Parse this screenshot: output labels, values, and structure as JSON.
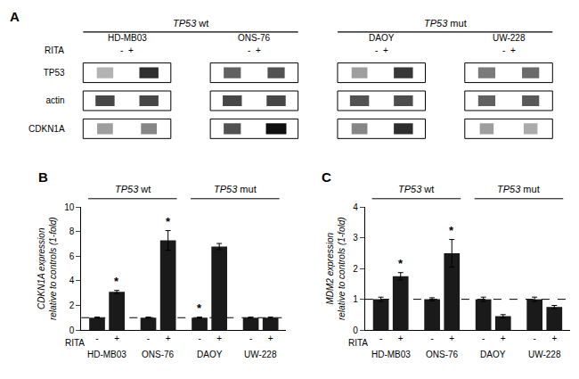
{
  "chart_data": [
    {
      "type": "blot",
      "title": "A",
      "row_labels": [
        "TP53",
        "actin",
        "CDKN1A"
      ],
      "column_labels": [
        "HD-MB03",
        "ONS-76",
        "DAOY",
        "UW-228"
      ],
      "lane_labels": [
        "-  +",
        "-  +",
        "-  +",
        "-  +"
      ],
      "lane_title": "RITA",
      "brackets": [
        {
          "text": "TP53 wt",
          "columns": [
            0,
            1
          ]
        },
        {
          "text": "TP53 mut",
          "columns": [
            2,
            3
          ]
        }
      ],
      "band_intensity": [
        [
          0.3,
          0.82,
          0.62,
          0.68,
          0.38,
          0.78,
          0.52,
          0.58
        ],
        [
          0.72,
          0.72,
          0.72,
          0.72,
          0.68,
          0.7,
          0.62,
          0.65
        ],
        [
          0.38,
          0.48,
          0.68,
          0.94,
          0.48,
          0.82,
          0.38,
          0.33
        ]
      ],
      "band_width": [
        [
          0.5,
          0.58,
          0.52,
          0.52,
          0.48,
          0.58,
          0.52,
          0.52
        ],
        [
          0.58,
          0.58,
          0.58,
          0.58,
          0.58,
          0.58,
          0.52,
          0.52
        ],
        [
          0.48,
          0.48,
          0.52,
          0.62,
          0.48,
          0.58,
          0.42,
          0.42
        ]
      ]
    },
    {
      "type": "bar",
      "title": "B",
      "categories": [
        "-",
        "+",
        "-",
        "+",
        "-",
        "+",
        "-",
        "+"
      ],
      "groups": [
        "HD-MB03",
        "HD-MB03",
        "ONS-76",
        "ONS-76",
        "DAOY",
        "DAOY",
        "UW-228",
        "UW-228"
      ],
      "category_title": "RITA",
      "values": [
        1.0,
        3.1,
        1.0,
        7.3,
        1.0,
        6.8,
        1.0,
        1.0
      ],
      "errors": [
        0.05,
        0.12,
        0.05,
        0.8,
        0.05,
        0.25,
        0.05,
        0.05
      ],
      "color": "#1a1a1a",
      "y_label": "CDKN1A expression\nrelative to controls (1-fold)",
      "ylim": [
        0,
        10
      ],
      "yticks": [
        0,
        2,
        4,
        6,
        8,
        10
      ],
      "grid": false,
      "reference_line": 1.0,
      "annotations": [
        {
          "text": "*",
          "index": 1
        },
        {
          "text": "*",
          "index": 3
        },
        {
          "text": "*",
          "index": 4
        }
      ],
      "brackets": [
        {
          "text": "TP53 wt",
          "from": 0,
          "to": 3
        },
        {
          "text": "TP53 mut",
          "from": 4,
          "to": 7
        }
      ]
    },
    {
      "type": "bar",
      "title": "C",
      "categories": [
        "-",
        "+",
        "-",
        "+",
        "-",
        "+",
        "-",
        "+"
      ],
      "groups": [
        "HD-MB03",
        "HD-MB03",
        "ONS-76",
        "ONS-76",
        "DAOY",
        "DAOY",
        "UW-228",
        "UW-228"
      ],
      "category_title": "RITA",
      "values": [
        1.0,
        1.75,
        1.0,
        2.5,
        1.0,
        0.45,
        1.0,
        0.75
      ],
      "errors": [
        0.07,
        0.12,
        0.05,
        0.45,
        0.07,
        0.05,
        0.07,
        0.05
      ],
      "color": "#1a1a1a",
      "y_label": "MDM2 expression\nrelative to controls (1-fold)",
      "ylim": [
        0,
        4
      ],
      "yticks": [
        0,
        1,
        2,
        3,
        4
      ],
      "grid": false,
      "reference_line": 1.0,
      "annotations": [
        {
          "text": "*",
          "index": 1
        },
        {
          "text": "*",
          "index": 3
        }
      ],
      "brackets": [
        {
          "text": "TP53 wt",
          "from": 0,
          "to": 3
        },
        {
          "text": "TP53 mut",
          "from": 4,
          "to": 7
        }
      ]
    }
  ]
}
